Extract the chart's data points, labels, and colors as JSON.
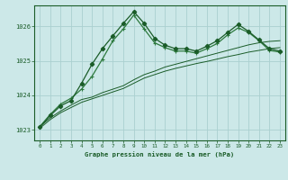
{
  "title": "Graphe pression niveau de la mer (hPa)",
  "background_color": "#cce8e8",
  "grid_color": "#aad0d0",
  "line_color_dark": "#1a5c28",
  "line_color_med": "#2d7a3e",
  "xlim": [
    -0.5,
    23.5
  ],
  "ylim": [
    1022.7,
    1026.6
  ],
  "yticks": [
    1023,
    1024,
    1025,
    1026
  ],
  "xticks": [
    0,
    1,
    2,
    3,
    4,
    5,
    6,
    7,
    8,
    9,
    10,
    11,
    12,
    13,
    14,
    15,
    16,
    17,
    18,
    19,
    20,
    21,
    22,
    23
  ],
  "s1_x": [
    0,
    1,
    2,
    3,
    4,
    5,
    6,
    7,
    8,
    9,
    10,
    11,
    12,
    13,
    14,
    15,
    16,
    17,
    18,
    19,
    20,
    21,
    22,
    23
  ],
  "s1_y": [
    1023.05,
    1023.3,
    1023.5,
    1023.65,
    1023.8,
    1023.9,
    1024.0,
    1024.1,
    1024.2,
    1024.35,
    1024.5,
    1024.6,
    1024.7,
    1024.78,
    1024.85,
    1024.92,
    1024.98,
    1025.05,
    1025.12,
    1025.18,
    1025.25,
    1025.3,
    1025.35,
    1025.38
  ],
  "s2_x": [
    0,
    1,
    2,
    3,
    4,
    5,
    6,
    7,
    8,
    9,
    10,
    11,
    12,
    13,
    14,
    15,
    16,
    17,
    18,
    19,
    20,
    21,
    22,
    23
  ],
  "s2_y": [
    1023.1,
    1023.35,
    1023.55,
    1023.72,
    1023.88,
    1023.95,
    1024.08,
    1024.18,
    1024.28,
    1024.45,
    1024.6,
    1024.7,
    1024.82,
    1024.9,
    1024.98,
    1025.06,
    1025.14,
    1025.22,
    1025.3,
    1025.38,
    1025.46,
    1025.52,
    1025.56,
    1025.58
  ],
  "s3_x": [
    0,
    1,
    2,
    3,
    4,
    5,
    6,
    7,
    8,
    9,
    10,
    11,
    12,
    13,
    14,
    15,
    16,
    17,
    18,
    19,
    20,
    21,
    22,
    23
  ],
  "s3_y": [
    1023.1,
    1023.45,
    1023.75,
    1023.92,
    1024.18,
    1024.55,
    1025.05,
    1025.58,
    1025.92,
    1026.32,
    1025.92,
    1025.52,
    1025.38,
    1025.28,
    1025.28,
    1025.22,
    1025.35,
    1025.5,
    1025.75,
    1025.95,
    1025.82,
    1025.58,
    1025.3,
    1025.25
  ],
  "s4_x": [
    0,
    1,
    2,
    3,
    4,
    5,
    6,
    7,
    8,
    9,
    10,
    11,
    12,
    13,
    14,
    15,
    16,
    17,
    18,
    19,
    20,
    21,
    22,
    23
  ],
  "s4_y": [
    1023.08,
    1023.42,
    1023.7,
    1023.85,
    1024.35,
    1024.9,
    1025.35,
    1025.72,
    1026.08,
    1026.42,
    1026.08,
    1025.65,
    1025.45,
    1025.35,
    1025.35,
    1025.28,
    1025.42,
    1025.58,
    1025.82,
    1026.05,
    1025.85,
    1025.6,
    1025.35,
    1025.28
  ]
}
